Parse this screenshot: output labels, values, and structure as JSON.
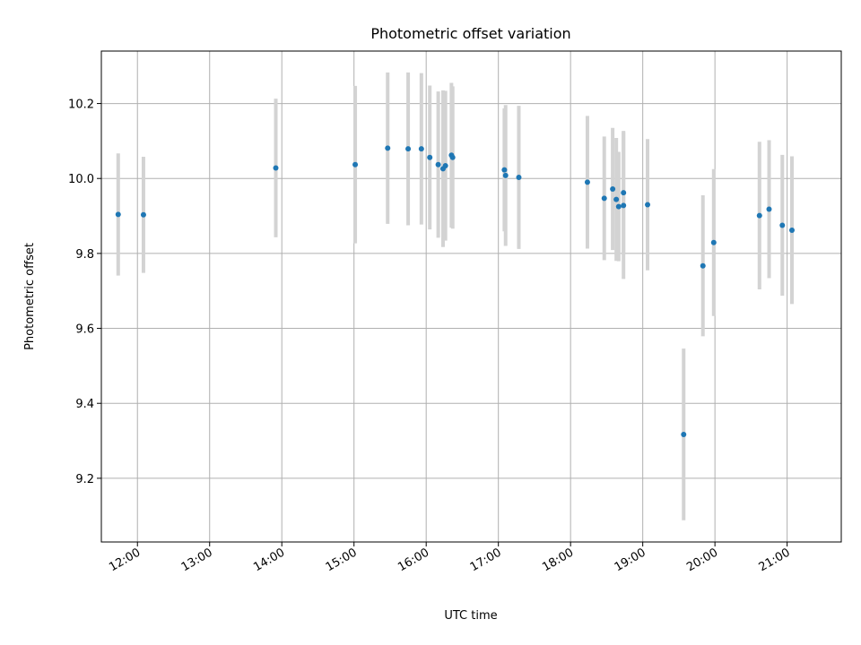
{
  "chart_data": {
    "type": "scatter",
    "title": "Photometric offset variation",
    "xlabel": "UTC time",
    "ylabel": "Photometric offset",
    "x_ticks": [
      "12:00",
      "13:00",
      "14:00",
      "15:00",
      "16:00",
      "17:00",
      "18:00",
      "19:00",
      "20:00",
      "21:00"
    ],
    "y_ticks": [
      9.2,
      9.4,
      9.6,
      9.8,
      10.0,
      10.2
    ],
    "xlim": [
      "11:30",
      "21:45"
    ],
    "ylim": [
      9.03,
      10.34
    ],
    "grid": true,
    "errorbar_color": "#d3d3d3",
    "marker_color": "#1f77b4",
    "points": [
      {
        "x": "11:44",
        "y": 9.904,
        "err": 0.163
      },
      {
        "x": "12:05",
        "y": 9.903,
        "err": 0.155
      },
      {
        "x": "13:55",
        "y": 10.028,
        "err": 0.185
      },
      {
        "x": "15:01",
        "y": 10.037,
        "err": 0.21
      },
      {
        "x": "15:28",
        "y": 10.081,
        "err": 0.202
      },
      {
        "x": "15:45",
        "y": 10.079,
        "err": 0.204
      },
      {
        "x": "15:56",
        "y": 10.079,
        "err": 0.202
      },
      {
        "x": "16:03",
        "y": 10.056,
        "err": 0.192
      },
      {
        "x": "16:10",
        "y": 10.037,
        "err": 0.195
      },
      {
        "x": "16:14",
        "y": 10.026,
        "err": 0.209
      },
      {
        "x": "16:16",
        "y": 10.034,
        "err": 0.2
      },
      {
        "x": "16:21",
        "y": 10.062,
        "err": 0.193
      },
      {
        "x": "16:22",
        "y": 10.056,
        "err": 0.19
      },
      {
        "x": "17:05",
        "y": 10.023,
        "err": 0.164
      },
      {
        "x": "17:06",
        "y": 10.008,
        "err": 0.188
      },
      {
        "x": "17:17",
        "y": 10.003,
        "err": 0.191
      },
      {
        "x": "18:14",
        "y": 9.99,
        "err": 0.177
      },
      {
        "x": "18:28",
        "y": 9.947,
        "err": 0.165
      },
      {
        "x": "18:35",
        "y": 9.972,
        "err": 0.163
      },
      {
        "x": "18:38",
        "y": 9.944,
        "err": 0.164
      },
      {
        "x": "18:40",
        "y": 9.925,
        "err": 0.146
      },
      {
        "x": "18:44",
        "y": 9.962,
        "err": 0.165
      },
      {
        "x": "18:44",
        "y": 9.928,
        "err": 0.196
      },
      {
        "x": "19:04",
        "y": 9.93,
        "err": 0.175
      },
      {
        "x": "19:34",
        "y": 9.317,
        "err": 0.229
      },
      {
        "x": "19:50",
        "y": 9.767,
        "err": 0.188
      },
      {
        "x": "19:59",
        "y": 9.829,
        "err": 0.196
      },
      {
        "x": "20:37",
        "y": 9.901,
        "err": 0.197
      },
      {
        "x": "20:45",
        "y": 9.918,
        "err": 0.184
      },
      {
        "x": "20:56",
        "y": 9.875,
        "err": 0.188
      },
      {
        "x": "21:04",
        "y": 9.862,
        "err": 0.197
      }
    ]
  }
}
